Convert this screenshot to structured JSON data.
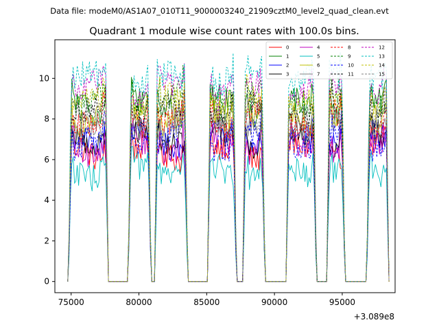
{
  "figure": {
    "suptitle": "Data file: modeM0/AS1A07_010T11_9000003240_21909cztM0_level2_quad_clean.evt"
  },
  "chart_data": {
    "type": "line",
    "title": "Quadrant 1 module wise count rates with 100.0s bins.",
    "xlabel": "",
    "ylabel": "",
    "x_offset_label": "+3.089e8",
    "xlim": [
      73800,
      98900
    ],
    "ylim": [
      -0.55,
      11.9
    ],
    "xticks": [
      75000,
      80000,
      85000,
      90000,
      95000
    ],
    "xtick_labels": [
      "75000",
      "80000",
      "85000",
      "90000",
      "95000"
    ],
    "yticks": [
      0,
      2,
      4,
      6,
      8,
      10
    ],
    "ytick_labels": [
      "0",
      "2",
      "4",
      "6",
      "8",
      "10"
    ],
    "legend_position": "upper right",
    "legend_columns": 4,
    "active_intervals": [
      [
        74850,
        77700
      ],
      [
        79250,
        80850
      ],
      [
        81200,
        83550
      ],
      [
        85100,
        87150
      ],
      [
        87700,
        89250
      ],
      [
        90900,
        93050
      ],
      [
        93900,
        95150
      ],
      [
        96850,
        98400
      ]
    ],
    "series": [
      {
        "name": "0",
        "color": "#ff0000",
        "dash": "solid",
        "mean_rate": 6.3
      },
      {
        "name": "1",
        "color": "#008000",
        "dash": "solid",
        "mean_rate": 8.6
      },
      {
        "name": "2",
        "color": "#0000ff",
        "dash": "solid",
        "mean_rate": 7.0
      },
      {
        "name": "3",
        "color": "#000000",
        "dash": "solid",
        "mean_rate": 7.1
      },
      {
        "name": "4",
        "color": "#bf00bf",
        "dash": "solid",
        "mean_rate": 6.7
      },
      {
        "name": "5",
        "color": "#00bfbf",
        "dash": "solid",
        "mean_rate": 5.5
      },
      {
        "name": "6",
        "color": "#bfbf00",
        "dash": "solid",
        "mean_rate": 8.2
      },
      {
        "name": "7",
        "color": "#808080",
        "dash": "solid",
        "mean_rate": 7.6
      },
      {
        "name": "8",
        "color": "#ff0000",
        "dash": "dashed",
        "mean_rate": 8.0
      },
      {
        "name": "9",
        "color": "#008000",
        "dash": "dashed",
        "mean_rate": 8.9
      },
      {
        "name": "10",
        "color": "#0000ff",
        "dash": "dashed",
        "mean_rate": 6.9
      },
      {
        "name": "11",
        "color": "#000000",
        "dash": "dashed",
        "mean_rate": 8.4
      },
      {
        "name": "12",
        "color": "#bf00bf",
        "dash": "dashed",
        "mean_rate": 9.4
      },
      {
        "name": "13",
        "color": "#00bfbf",
        "dash": "dashed",
        "mean_rate": 9.9
      },
      {
        "name": "14",
        "color": "#bfbf00",
        "dash": "dashed",
        "mean_rate": 8.7
      },
      {
        "name": "15",
        "color": "#808080",
        "dash": "dashed",
        "mean_rate": 7.9
      }
    ]
  }
}
